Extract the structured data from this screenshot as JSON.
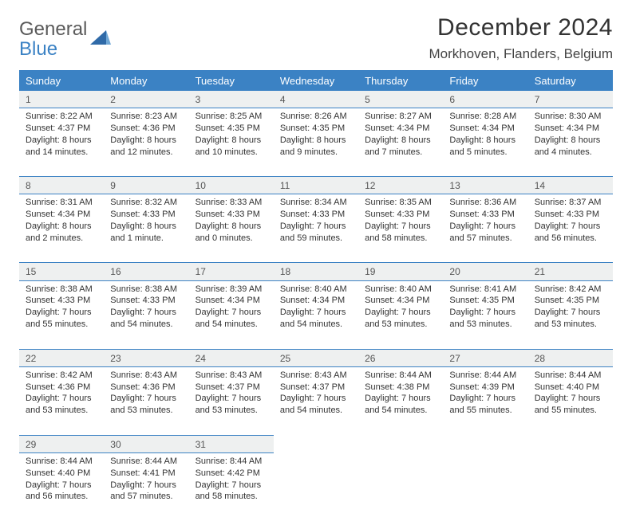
{
  "brand": {
    "line1": "General",
    "line2": "Blue"
  },
  "title": "December 2024",
  "location": "Morkhoven, Flanders, Belgium",
  "colors": {
    "header_bg": "#3b82c4",
    "header_text": "#ffffff",
    "daynum_bg": "#eef0f0",
    "border": "#3b82c4",
    "body_text": "#333333"
  },
  "weekdays": [
    "Sunday",
    "Monday",
    "Tuesday",
    "Wednesday",
    "Thursday",
    "Friday",
    "Saturday"
  ],
  "weeks": [
    [
      {
        "n": "1",
        "sr": "Sunrise: 8:22 AM",
        "ss": "Sunset: 4:37 PM",
        "d1": "Daylight: 8 hours",
        "d2": "and 14 minutes."
      },
      {
        "n": "2",
        "sr": "Sunrise: 8:23 AM",
        "ss": "Sunset: 4:36 PM",
        "d1": "Daylight: 8 hours",
        "d2": "and 12 minutes."
      },
      {
        "n": "3",
        "sr": "Sunrise: 8:25 AM",
        "ss": "Sunset: 4:35 PM",
        "d1": "Daylight: 8 hours",
        "d2": "and 10 minutes."
      },
      {
        "n": "4",
        "sr": "Sunrise: 8:26 AM",
        "ss": "Sunset: 4:35 PM",
        "d1": "Daylight: 8 hours",
        "d2": "and 9 minutes."
      },
      {
        "n": "5",
        "sr": "Sunrise: 8:27 AM",
        "ss": "Sunset: 4:34 PM",
        "d1": "Daylight: 8 hours",
        "d2": "and 7 minutes."
      },
      {
        "n": "6",
        "sr": "Sunrise: 8:28 AM",
        "ss": "Sunset: 4:34 PM",
        "d1": "Daylight: 8 hours",
        "d2": "and 5 minutes."
      },
      {
        "n": "7",
        "sr": "Sunrise: 8:30 AM",
        "ss": "Sunset: 4:34 PM",
        "d1": "Daylight: 8 hours",
        "d2": "and 4 minutes."
      }
    ],
    [
      {
        "n": "8",
        "sr": "Sunrise: 8:31 AM",
        "ss": "Sunset: 4:34 PM",
        "d1": "Daylight: 8 hours",
        "d2": "and 2 minutes."
      },
      {
        "n": "9",
        "sr": "Sunrise: 8:32 AM",
        "ss": "Sunset: 4:33 PM",
        "d1": "Daylight: 8 hours",
        "d2": "and 1 minute."
      },
      {
        "n": "10",
        "sr": "Sunrise: 8:33 AM",
        "ss": "Sunset: 4:33 PM",
        "d1": "Daylight: 8 hours",
        "d2": "and 0 minutes."
      },
      {
        "n": "11",
        "sr": "Sunrise: 8:34 AM",
        "ss": "Sunset: 4:33 PM",
        "d1": "Daylight: 7 hours",
        "d2": "and 59 minutes."
      },
      {
        "n": "12",
        "sr": "Sunrise: 8:35 AM",
        "ss": "Sunset: 4:33 PM",
        "d1": "Daylight: 7 hours",
        "d2": "and 58 minutes."
      },
      {
        "n": "13",
        "sr": "Sunrise: 8:36 AM",
        "ss": "Sunset: 4:33 PM",
        "d1": "Daylight: 7 hours",
        "d2": "and 57 minutes."
      },
      {
        "n": "14",
        "sr": "Sunrise: 8:37 AM",
        "ss": "Sunset: 4:33 PM",
        "d1": "Daylight: 7 hours",
        "d2": "and 56 minutes."
      }
    ],
    [
      {
        "n": "15",
        "sr": "Sunrise: 8:38 AM",
        "ss": "Sunset: 4:33 PM",
        "d1": "Daylight: 7 hours",
        "d2": "and 55 minutes."
      },
      {
        "n": "16",
        "sr": "Sunrise: 8:38 AM",
        "ss": "Sunset: 4:33 PM",
        "d1": "Daylight: 7 hours",
        "d2": "and 54 minutes."
      },
      {
        "n": "17",
        "sr": "Sunrise: 8:39 AM",
        "ss": "Sunset: 4:34 PM",
        "d1": "Daylight: 7 hours",
        "d2": "and 54 minutes."
      },
      {
        "n": "18",
        "sr": "Sunrise: 8:40 AM",
        "ss": "Sunset: 4:34 PM",
        "d1": "Daylight: 7 hours",
        "d2": "and 54 minutes."
      },
      {
        "n": "19",
        "sr": "Sunrise: 8:40 AM",
        "ss": "Sunset: 4:34 PM",
        "d1": "Daylight: 7 hours",
        "d2": "and 53 minutes."
      },
      {
        "n": "20",
        "sr": "Sunrise: 8:41 AM",
        "ss": "Sunset: 4:35 PM",
        "d1": "Daylight: 7 hours",
        "d2": "and 53 minutes."
      },
      {
        "n": "21",
        "sr": "Sunrise: 8:42 AM",
        "ss": "Sunset: 4:35 PM",
        "d1": "Daylight: 7 hours",
        "d2": "and 53 minutes."
      }
    ],
    [
      {
        "n": "22",
        "sr": "Sunrise: 8:42 AM",
        "ss": "Sunset: 4:36 PM",
        "d1": "Daylight: 7 hours",
        "d2": "and 53 minutes."
      },
      {
        "n": "23",
        "sr": "Sunrise: 8:43 AM",
        "ss": "Sunset: 4:36 PM",
        "d1": "Daylight: 7 hours",
        "d2": "and 53 minutes."
      },
      {
        "n": "24",
        "sr": "Sunrise: 8:43 AM",
        "ss": "Sunset: 4:37 PM",
        "d1": "Daylight: 7 hours",
        "d2": "and 53 minutes."
      },
      {
        "n": "25",
        "sr": "Sunrise: 8:43 AM",
        "ss": "Sunset: 4:37 PM",
        "d1": "Daylight: 7 hours",
        "d2": "and 54 minutes."
      },
      {
        "n": "26",
        "sr": "Sunrise: 8:44 AM",
        "ss": "Sunset: 4:38 PM",
        "d1": "Daylight: 7 hours",
        "d2": "and 54 minutes."
      },
      {
        "n": "27",
        "sr": "Sunrise: 8:44 AM",
        "ss": "Sunset: 4:39 PM",
        "d1": "Daylight: 7 hours",
        "d2": "and 55 minutes."
      },
      {
        "n": "28",
        "sr": "Sunrise: 8:44 AM",
        "ss": "Sunset: 4:40 PM",
        "d1": "Daylight: 7 hours",
        "d2": "and 55 minutes."
      }
    ],
    [
      {
        "n": "29",
        "sr": "Sunrise: 8:44 AM",
        "ss": "Sunset: 4:40 PM",
        "d1": "Daylight: 7 hours",
        "d2": "and 56 minutes."
      },
      {
        "n": "30",
        "sr": "Sunrise: 8:44 AM",
        "ss": "Sunset: 4:41 PM",
        "d1": "Daylight: 7 hours",
        "d2": "and 57 minutes."
      },
      {
        "n": "31",
        "sr": "Sunrise: 8:44 AM",
        "ss": "Sunset: 4:42 PM",
        "d1": "Daylight: 7 hours",
        "d2": "and 58 minutes."
      },
      null,
      null,
      null,
      null
    ]
  ]
}
